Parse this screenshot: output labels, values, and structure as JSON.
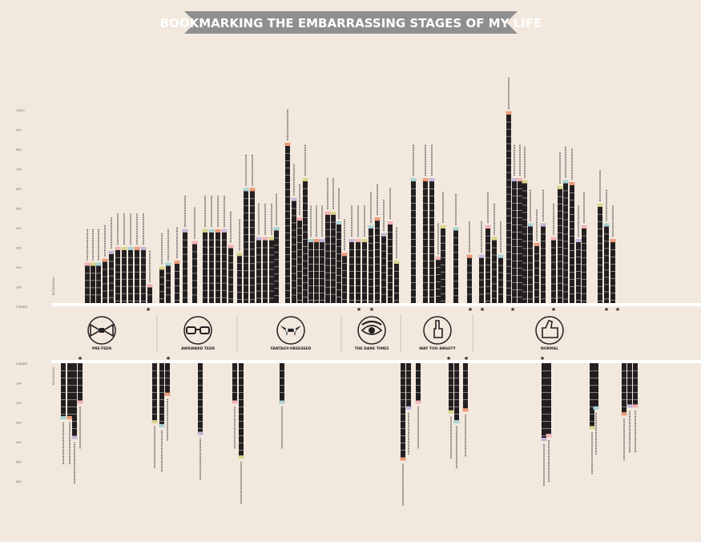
{
  "title": "BOOKMARKING THE EMBARRASSING STAGES OF MY LIFE",
  "colors": {
    "background": "#f2e8dd",
    "banner": "#8f8f8f",
    "banner_text": "#ffffff",
    "bar": "#231f20",
    "rule": "#ffffff",
    "era_divider": "#cfc4b8",
    "pink": "#f3b2b6",
    "yellow": "#d8d48b",
    "teal": "#a8d2d4",
    "orange": "#ee9a78",
    "lavender": "#c7b6d9"
  },
  "eras": [
    {
      "label": "PRE-TEEN",
      "icon": "bow-tie-icon"
    },
    {
      "label": "AWKWARD TEEN",
      "icon": "nerd-glasses-icon"
    },
    {
      "label": "FANTASY-OBSESSED",
      "icon": "vampire-fangs-icon"
    },
    {
      "label": "THE DARK TIMES",
      "icon": "dark-eye-icon"
    },
    {
      "label": "WAY TOO ANGSTY",
      "icon": "middle-finger-icon"
    },
    {
      "label": "NORMAL",
      "icon": "thumbs-up-icon"
    }
  ],
  "chart_data": {
    "type": "bar",
    "top_axis_ticks": [
      "1000+",
      "900",
      "800",
      "700",
      "600",
      "500",
      "400",
      "300",
      "200",
      "100",
      "0 BARS"
    ],
    "top_axis_title": "BOOKMARKS",
    "bottom_axis_ticks": [
      "0 BARS",
      "100",
      "200",
      "300",
      "400",
      "500",
      "600"
    ],
    "bottom_axis_title": "BOOKMARKS",
    "top_series": [
      190,
      190,
      190,
      210,
      250,
      270,
      270,
      270,
      270,
      270,
      80,
      170,
      190,
      200,
      360,
      300,
      360,
      360,
      360,
      360,
      280,
      240,
      570,
      570,
      320,
      320,
      320,
      370,
      800,
      520,
      420,
      620,
      310,
      310,
      310,
      450,
      450,
      400,
      240,
      310,
      310,
      310,
      380,
      420,
      340,
      400,
      200,
      620,
      620,
      620,
      220,
      380,
      370,
      230,
      230,
      380,
      320,
      230,
      960,
      620,
      620,
      610,
      390,
      290,
      390,
      320,
      580,
      610,
      600,
      310,
      380,
      490,
      390,
      310
    ],
    "bottom_series": [
      -270,
      -270,
      -370,
      -190,
      -290,
      -310,
      -150,
      -350,
      -190,
      -470,
      -190,
      -480,
      -220,
      -190,
      -240,
      -290,
      -230,
      -380,
      -360,
      -320,
      -220,
      -250,
      -210,
      -210,
      -200,
      -360,
      -420,
      -560
    ]
  }
}
